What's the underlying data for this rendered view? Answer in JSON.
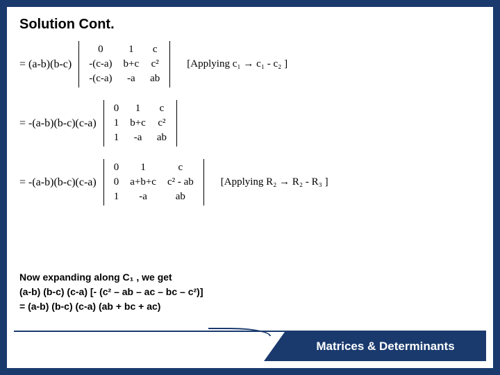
{
  "colors": {
    "frame": "#1a3a6e",
    "bg": "#ffffff",
    "text": "#000000"
  },
  "title": "Solution Cont.",
  "eq1": {
    "prefix": "= (a-b)(b-c)",
    "matrix": [
      [
        "0",
        "1",
        "c"
      ],
      [
        "-(c-a)",
        "b+c",
        "c²"
      ],
      [
        "-(c-a)",
        "-a",
        "ab"
      ]
    ],
    "note": "[Applying c₁ → c₁ - c₂ ]"
  },
  "eq2": {
    "prefix": "= -(a-b)(b-c)(c-a)",
    "matrix": [
      [
        "0",
        "1",
        "c"
      ],
      [
        "1",
        "b+c",
        "c²"
      ],
      [
        "1",
        "-a",
        "ab"
      ]
    ],
    "note": ""
  },
  "eq3": {
    "prefix": "= -(a-b)(b-c)(c-a)",
    "matrix": [
      [
        "0",
        "1",
        "c"
      ],
      [
        "0",
        "a+b+c",
        "c² - ab"
      ],
      [
        "1",
        "-a",
        "ab"
      ]
    ],
    "note": "[Applying R₂ → R₂ - R₃ ]"
  },
  "bottom": {
    "l1": "Now expanding along C₁ , we get",
    "l2": "(a-b) (b-c) (c-a) [- (c² – ab – ac – bc – c²)]",
    "l3": "= (a-b) (b-c) (c-a) (ab + bc + ac)"
  },
  "footer": "Matrices & Determinants"
}
